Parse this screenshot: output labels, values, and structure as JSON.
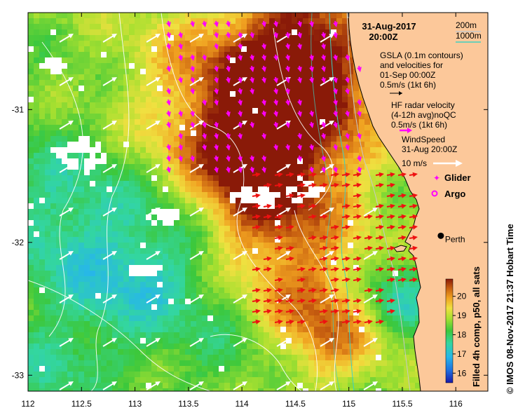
{
  "title": {
    "date": "31-Aug-2017",
    "time": "20:00Z"
  },
  "depth_legend": {
    "items": [
      {
        "label": "200m",
        "color": "#c8c8c8"
      },
      {
        "label": "1000m",
        "color": "#3fd0c0"
      }
    ]
  },
  "gsla_legend": {
    "lines": [
      "GSLA (0.1m contours)",
      "and velocities for",
      "01-Sep 00:00Z",
      "0.5m/s (1kt 6h)"
    ],
    "arrow_color": "#000000"
  },
  "hf_legend": {
    "lines": [
      "HF radar velocity",
      "(4-12h avg)noQC",
      "0.5m/s (1kt 6h)"
    ],
    "arrow_color": "#ff00ff"
  },
  "wind_legend": {
    "lines": [
      "WindSpeed",
      "31-Aug 20:00Z",
      "10 m/s"
    ],
    "arrow_color": "#ffffff"
  },
  "markers": {
    "glider": {
      "label": "Glider",
      "color": "#ff00ff"
    },
    "argo": {
      "label": "Argo",
      "color": "#ff00ff"
    }
  },
  "city": {
    "label": "Perth",
    "lon": 115.86,
    "lat": -31.95
  },
  "colorbar": {
    "caption": "Filled 4h comp, p50, all sats",
    "min": 15.5,
    "max": 20.9,
    "ticks": [
      16,
      17,
      18,
      19,
      20
    ]
  },
  "credit": "© IMOS 08-Nov-2017 21:37 Hobart Time",
  "axes": {
    "lon_min": 112,
    "lon_max": 116.3,
    "lat_min": -33.12,
    "lat_max": -30.27,
    "x_ticks": [
      {
        "value": 112,
        "label": "112"
      },
      {
        "value": 112.5,
        "label": "112.5"
      },
      {
        "value": 113,
        "label": "113"
      },
      {
        "value": 113.5,
        "label": "113.5"
      },
      {
        "value": 114,
        "label": "114"
      },
      {
        "value": 114.5,
        "label": "114.5"
      },
      {
        "value": 115,
        "label": "115"
      },
      {
        "value": 115.5,
        "label": "115.5"
      },
      {
        "value": 116,
        "label": "116"
      }
    ],
    "y_ticks": [
      {
        "value": -31,
        "label": "-31"
      },
      {
        "value": -32,
        "label": "-32"
      },
      {
        "value": -33,
        "label": "-33"
      }
    ]
  }
}
